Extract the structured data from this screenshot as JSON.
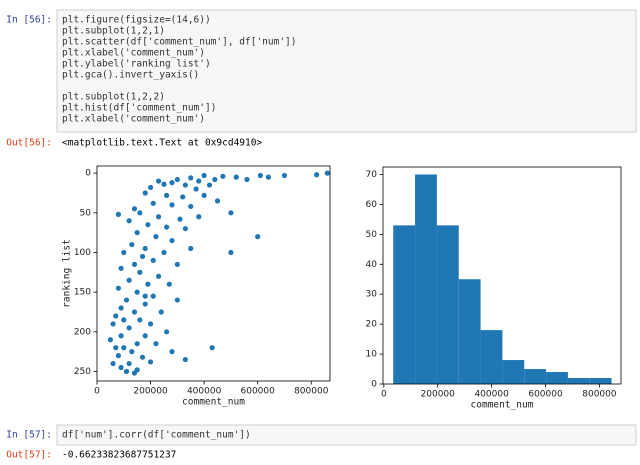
{
  "cells": [
    {
      "prompt": "In [56]:",
      "code": [
        [
          "plt.figure(figsize=(14,6))",
          "plt.subplot(1,2,1)",
          "plt.scatter(df['comment_num'], df['num'])",
          "plt.xlabel('comment_num')",
          "plt.ylabel('ranking list')",
          "plt.gca().invert_yaxis()"
        ],
        [
          "plt.subplot(1,2,2)",
          "plt.hist(df['comment_num'])",
          "plt.xlabel('comment_num')"
        ]
      ],
      "output_prompt": "Out[56]:",
      "output": "<matplotlib.text.Text at 0x9cd4910>"
    },
    {
      "prompt": "In [57]:",
      "code": [
        [
          "df['num'].corr(df['comment_num'])"
        ]
      ],
      "output_prompt": "Out[57]:",
      "output": "-0.66233823687751237"
    }
  ],
  "chart_data": [
    {
      "type": "scatter",
      "xlabel": "comment_num",
      "ylabel": "ranking list",
      "color": "#1f77b4",
      "xlim": [
        0,
        870000
      ],
      "ylim": [
        262,
        -9
      ],
      "xticks": [
        0,
        200000,
        400000,
        600000,
        800000
      ],
      "yticks": [
        0,
        50,
        100,
        150,
        200,
        250
      ],
      "x": [
        860000,
        820000,
        700000,
        640000,
        610000,
        560000,
        520000,
        470000,
        440000,
        400000,
        380000,
        350000,
        300000,
        280000,
        250000,
        230000,
        200000,
        330000,
        420000,
        370000,
        180000,
        260000,
        320000,
        400000,
        450000,
        210000,
        140000,
        280000,
        350000,
        160000,
        80000,
        230000,
        310000,
        380000,
        500000,
        120000,
        190000,
        260000,
        330000,
        600000,
        150000,
        220000,
        280000,
        130000,
        180000,
        250000,
        350000,
        100000,
        500000,
        170000,
        210000,
        140000,
        300000,
        90000,
        160000,
        230000,
        120000,
        190000,
        270000,
        80000,
        150000,
        210000,
        110000,
        300000,
        180000,
        90000,
        140000,
        240000,
        70000,
        160000,
        200000,
        60000,
        120000,
        260000,
        90000,
        180000,
        50000,
        150000,
        220000,
        100000,
        130000,
        280000,
        80000,
        170000,
        200000,
        60000,
        120000,
        330000,
        90000,
        150000,
        110000,
        140000,
        430000,
        70000,
        100000,
        180000
      ],
      "values": [
        0,
        2,
        3,
        5,
        3,
        8,
        5,
        4,
        8,
        3,
        10,
        6,
        8,
        12,
        14,
        10,
        18,
        15,
        15,
        20,
        25,
        28,
        30,
        28,
        35,
        38,
        45,
        40,
        42,
        50,
        52,
        55,
        58,
        55,
        50,
        60,
        65,
        68,
        70,
        80,
        75,
        80,
        85,
        90,
        95,
        100,
        95,
        100,
        100,
        105,
        110,
        115,
        115,
        120,
        125,
        130,
        135,
        140,
        140,
        145,
        150,
        155,
        160,
        160,
        165,
        170,
        175,
        175,
        180,
        185,
        190,
        190,
        195,
        200,
        205,
        205,
        210,
        215,
        215,
        220,
        225,
        225,
        230,
        232,
        238,
        240,
        240,
        235,
        245,
        248,
        250,
        252,
        220,
        220,
        185,
        155
      ]
    },
    {
      "type": "histogram",
      "xlabel": "comment_num",
      "color": "#1f77b4",
      "xlim": [
        -3000,
        880000
      ],
      "ylim": [
        0,
        72.5
      ],
      "xticks": [
        0,
        200000,
        400000,
        600000,
        800000
      ],
      "yticks": [
        0,
        10,
        20,
        30,
        40,
        50,
        60,
        70
      ],
      "bins": [
        35000,
        116000,
        197000,
        278000,
        359000,
        440000,
        521000,
        602000,
        683000,
        764000,
        845000
      ],
      "values": [
        53,
        70,
        53,
        35,
        18,
        8,
        5,
        4,
        2,
        2
      ]
    }
  ]
}
